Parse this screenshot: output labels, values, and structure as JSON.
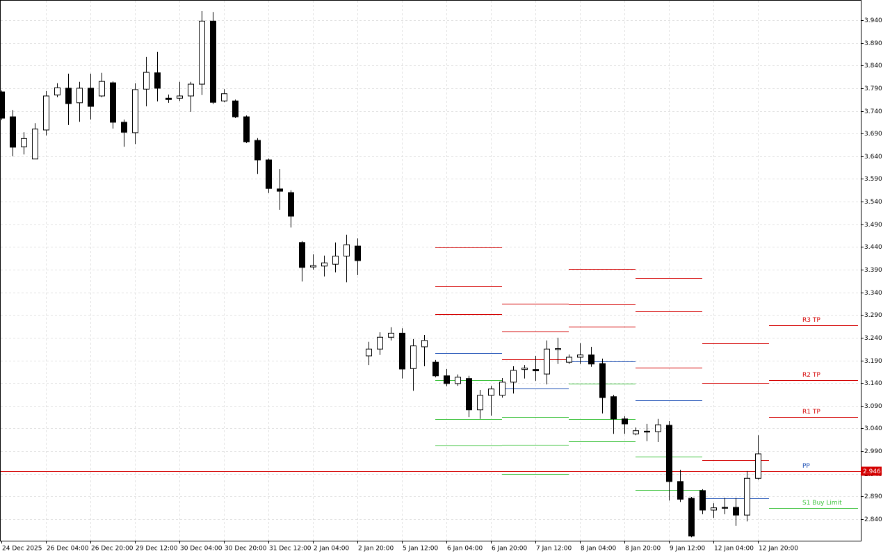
{
  "chart_data": {
    "type": "candlestick",
    "categories": [
      "24 Dec 2025",
      null,
      null,
      null,
      "26 Dec 04:00",
      null,
      null,
      null,
      "26 Dec 20:00",
      null,
      null,
      null,
      "29 Dec 12:00",
      null,
      null,
      null,
      "30 Dec 04:00",
      null,
      null,
      null,
      "30 Dec 20:00",
      null,
      null,
      null,
      "31 Dec 12:00",
      null,
      null,
      null,
      "2 Jan 04:00",
      null,
      null,
      null,
      "2 Jan 20:00",
      null,
      null,
      null,
      "5 Jan 12:00",
      null,
      null,
      null,
      "6 Jan 04:00",
      null,
      null,
      null,
      "6 Jan 20:00",
      null,
      null,
      null,
      "7 Jan 12:00",
      null,
      null,
      null,
      "8 Jan 04:00",
      null,
      null,
      null,
      "8 Jan 20:00",
      null,
      null,
      null,
      "9 Jan 12:00",
      null,
      null,
      null,
      "12 Jan 04:00",
      null,
      null,
      null,
      "12 Jan 20:00"
    ],
    "open": [
      3.782,
      3.727,
      3.661,
      3.634,
      3.698,
      3.775,
      3.79,
      3.758,
      3.79,
      3.773,
      3.802,
      3.715,
      3.692,
      3.788,
      3.824,
      3.768,
      3.768,
      3.773,
      3.799,
      3.938,
      3.762,
      3.762,
      3.727,
      3.675,
      3.632,
      3.568,
      3.56,
      3.45,
      3.396,
      3.398,
      3.402,
      3.42,
      3.442,
      3.2,
      3.215,
      3.241,
      3.25,
      3.172,
      3.22,
      3.186,
      3.156,
      3.139,
      3.15,
      3.081,
      3.113,
      3.113,
      3.142,
      3.17,
      3.17,
      3.16,
      3.214,
      3.186,
      3.197,
      3.202,
      3.183,
      3.11,
      3.061,
      3.028,
      3.034,
      3.033,
      3.047,
      2.923,
      2.886,
      2.903,
      2.86,
      2.866,
      2.866,
      2.849,
      2.93
    ],
    "high": [
      3.785,
      3.742,
      3.693,
      3.713,
      3.784,
      3.801,
      3.822,
      3.804,
      3.822,
      3.824,
      3.805,
      3.721,
      3.801,
      3.859,
      3.87,
      3.776,
      3.804,
      3.804,
      3.96,
      3.958,
      3.788,
      3.765,
      3.73,
      3.68,
      3.635,
      3.612,
      3.565,
      3.453,
      3.424,
      3.421,
      3.45,
      3.467,
      3.459,
      3.231,
      3.252,
      3.263,
      3.261,
      3.237,
      3.246,
      3.191,
      3.171,
      3.159,
      3.156,
      3.125,
      3.134,
      3.151,
      3.177,
      3.18,
      3.2,
      3.234,
      3.24,
      3.203,
      3.228,
      3.22,
      3.194,
      3.114,
      3.067,
      3.042,
      3.05,
      3.061,
      3.056,
      2.949,
      2.889,
      2.906,
      2.875,
      2.887,
      2.887,
      2.946,
      3.025
    ],
    "low": [
      3.72,
      3.64,
      3.644,
      3.634,
      3.686,
      3.77,
      3.709,
      3.716,
      3.721,
      3.77,
      3.701,
      3.661,
      3.667,
      3.75,
      3.761,
      3.758,
      3.762,
      3.738,
      3.775,
      3.755,
      3.759,
      3.724,
      3.669,
      3.601,
      3.559,
      3.522,
      3.483,
      3.364,
      3.39,
      3.375,
      3.384,
      3.362,
      3.378,
      3.18,
      3.202,
      3.234,
      3.15,
      3.123,
      3.177,
      3.153,
      3.133,
      3.134,
      3.065,
      3.061,
      3.068,
      3.108,
      3.117,
      3.15,
      3.145,
      3.137,
      3.182,
      3.182,
      3.182,
      3.176,
      3.073,
      3.028,
      3.028,
      3.025,
      3.012,
      3.01,
      2.881,
      2.878,
      2.8,
      2.851,
      2.843,
      2.851,
      2.825,
      2.835,
      2.927
    ],
    "close": [
      3.724,
      3.66,
      3.679,
      3.7,
      3.773,
      3.791,
      3.756,
      3.79,
      3.75,
      3.805,
      3.715,
      3.693,
      3.787,
      3.825,
      3.79,
      3.765,
      3.773,
      3.799,
      3.938,
      3.759,
      3.778,
      3.727,
      3.672,
      3.632,
      3.569,
      3.563,
      3.508,
      3.395,
      3.399,
      3.405,
      3.42,
      3.445,
      3.41,
      3.215,
      3.241,
      3.25,
      3.171,
      3.222,
      3.234,
      3.156,
      3.139,
      3.153,
      3.081,
      3.113,
      3.127,
      3.142,
      3.168,
      3.173,
      3.167,
      3.215,
      3.216,
      3.197,
      3.202,
      3.182,
      3.108,
      3.061,
      3.05,
      3.035,
      3.032,
      3.048,
      2.923,
      2.884,
      2.803,
      2.86,
      2.865,
      2.864,
      2.849,
      2.93,
      2.984
    ],
    "up_color": "#ffffff",
    "down_color": "#000000",
    "ylim": [
      2.7925,
      3.9845
    ],
    "yticks": [
      {
        "value": 3.94,
        "label": "3.940"
      },
      {
        "value": 3.89,
        "label": "3.890"
      },
      {
        "value": 3.84,
        "label": "3.840"
      },
      {
        "value": 3.79,
        "label": "3.790"
      },
      {
        "value": 3.74,
        "label": "3.740"
      },
      {
        "value": 3.69,
        "label": "3.690"
      },
      {
        "value": 3.64,
        "label": "3.640"
      },
      {
        "value": 3.59,
        "label": "3.590"
      },
      {
        "value": 3.54,
        "label": "3.540"
      },
      {
        "value": 3.49,
        "label": "3.490"
      },
      {
        "value": 3.44,
        "label": "3.440"
      },
      {
        "value": 3.39,
        "label": "3.390"
      },
      {
        "value": 3.34,
        "label": "3.340"
      },
      {
        "value": 3.29,
        "label": "3.290"
      },
      {
        "value": 3.24,
        "label": "3.240"
      },
      {
        "value": 3.19,
        "label": "3.190"
      },
      {
        "value": 3.14,
        "label": "3.140"
      },
      {
        "value": 3.09,
        "label": "3.090"
      },
      {
        "value": 3.04,
        "label": "3.040"
      },
      {
        "value": 2.99,
        "label": "2.990"
      },
      {
        "value": 2.94,
        "label": "2.940"
      },
      {
        "value": 2.89,
        "label": "2.890"
      },
      {
        "value": 2.84,
        "label": "2.840"
      }
    ],
    "grid": true,
    "current_price": {
      "value": 2.946,
      "label": "2.946",
      "color": "#d40000"
    },
    "pivot_colors": {
      "r": "#d40000",
      "pp": "#1c4fb5",
      "s": "#3cc23c"
    },
    "pivots": [
      {
        "start": 39,
        "end": 45,
        "r": [
          3.439,
          3.353,
          3.292
        ],
        "pp": 3.206,
        "s": [
          3.146,
          3.061,
          3.002
        ]
      },
      {
        "start": 45,
        "end": 51,
        "r": [
          3.315,
          3.254,
          3.192
        ],
        "pp": 3.128,
        "s": [
          3.065,
          3.004,
          2.94
        ]
      },
      {
        "start": 51,
        "end": 57,
        "r": [
          3.392,
          3.313,
          3.264
        ],
        "pp": 3.188,
        "s": [
          3.139,
          3.061,
          3.012
        ]
      },
      {
        "start": 57,
        "end": 63,
        "r": [
          3.372,
          3.298,
          3.174
        ],
        "pp": 3.102,
        "s": [
          2.978,
          2.904
        ]
      },
      {
        "start": 63,
        "end": 69,
        "r": [
          3.228,
          3.14,
          2.97
        ],
        "pp": 2.886,
        "s": []
      },
      {
        "start": 69,
        "end": 77,
        "r": [
          3.267,
          3.146,
          3.065
        ],
        "pp": 2.946,
        "s": [
          2.864
        ],
        "r_labels": [
          "R3 TP",
          "R2 TP",
          "R1 TP"
        ],
        "pp_label": "PP",
        "s_labels": [
          "S1 Buy Limit"
        ]
      }
    ]
  }
}
